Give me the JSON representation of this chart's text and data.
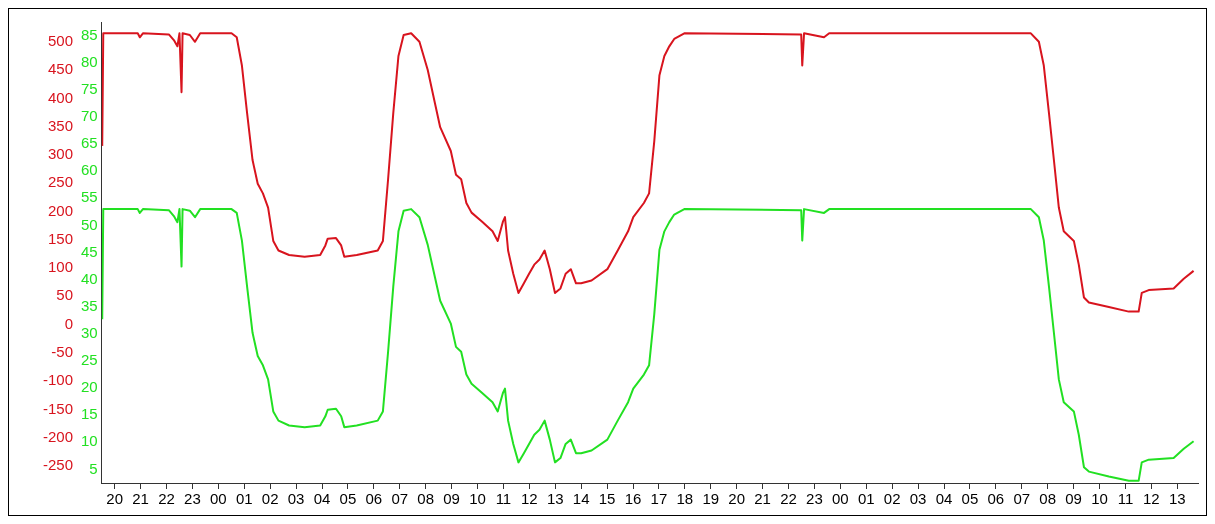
{
  "chart_data": {
    "type": "line",
    "x": [
      19.52,
      19.56,
      20.89,
      20.97,
      21.09,
      22.09,
      22.3,
      22.42,
      22.5,
      22.58,
      22.62,
      22.9,
      23.1,
      23.3,
      24.51,
      24.71,
      24.91,
      25.11,
      25.32,
      25.52,
      25.72,
      25.92,
      26.12,
      26.32,
      26.73,
      27.33,
      27.93,
      28.13,
      28.22,
      28.54,
      28.74,
      28.86,
      29.34,
      30.15,
      30.35,
      30.55,
      30.75,
      30.95,
      31.15,
      31.44,
      31.76,
      32.08,
      32.36,
      32.56,
      32.97,
      33.17,
      33.37,
      33.57,
      33.77,
      34.18,
      34.58,
      34.78,
      34.98,
      35.06,
      35.18,
      35.38,
      35.58,
      35.79,
      35.99,
      36.19,
      36.39,
      36.59,
      36.79,
      36.99,
      37.2,
      37.4,
      37.6,
      37.8,
      38.0,
      38.4,
      39.01,
      39.41,
      39.81,
      40.01,
      40.42,
      40.62,
      40.82,
      41.02,
      41.21,
      41.4,
      41.59,
      41.98,
      46.49,
      46.53,
      46.6,
      47.37,
      47.57,
      55.35,
      55.66,
      55.85,
      56.05,
      56.24,
      56.43,
      56.62,
      57.01,
      57.2,
      57.4,
      57.59,
      58.36,
      59.13,
      59.51,
      59.63,
      59.9,
      60.86,
      61.25,
      61.63
    ],
    "series": [
      {
        "color": "#d8141e",
        "axis": "y",
        "values": [
          316,
          515,
          515,
          508,
          515,
          513,
          502,
          492,
          515,
          411,
          515,
          512,
          500,
          515,
          515,
          508,
          458,
          374,
          291,
          249,
          232,
          207,
          148,
          131,
          123,
          120,
          123,
          140,
          152,
          153,
          140,
          120,
          123,
          131,
          148,
          257,
          374,
          475,
          512,
          515,
          500,
          450,
          391,
          349,
          307,
          265,
          257,
          215,
          198,
          182,
          165,
          148,
          182,
          190,
          131,
          90,
          56,
          73,
          90,
          106,
          115,
          131,
          98,
          56,
          64,
          90,
          98,
          73,
          73,
          78,
          98,
          131,
          165,
          190,
          215,
          232,
          324,
          441,
          475,
          492,
          505,
          515,
          513,
          458,
          515,
          508,
          515,
          515,
          500,
          458,
          374,
          291,
          207,
          165,
          148,
          106,
          48,
          39,
          31,
          23,
          23,
          56,
          61,
          64,
          81,
          95
        ]
      },
      {
        "color": "#22e022",
        "axis": "y2",
        "values": [
          32.7,
          53,
          53,
          52.3,
          53,
          52.8,
          51.6,
          50.6,
          53,
          42.4,
          53,
          52.7,
          51.5,
          53,
          53,
          52.3,
          47.2,
          38.7,
          30.2,
          25.9,
          24.2,
          21.6,
          15.7,
          14,
          13.1,
          12.8,
          13.1,
          14.8,
          16,
          16.2,
          14.8,
          12.8,
          13.1,
          14,
          15.7,
          26.7,
          38.7,
          48.9,
          52.7,
          53,
          51.5,
          46.4,
          40.4,
          36.1,
          31.9,
          27.6,
          26.7,
          22.5,
          20.8,
          19.1,
          17.4,
          15.7,
          19.1,
          19.9,
          14,
          9.7,
          6.3,
          8,
          9.7,
          11.4,
          12.3,
          14,
          10.5,
          6.3,
          7.1,
          9.7,
          10.5,
          8,
          8,
          8.5,
          10.5,
          14,
          17.4,
          19.9,
          22.5,
          24.2,
          33.6,
          45.5,
          48.9,
          50.6,
          52,
          53,
          52.8,
          47.2,
          53,
          52.3,
          53,
          53,
          51.5,
          47.2,
          38.7,
          30.2,
          21.6,
          17.4,
          15.7,
          11.4,
          5.4,
          4.6,
          3.7,
          2.9,
          2.9,
          6.3,
          6.8,
          7.1,
          8.8,
          10.2
        ]
      }
    ],
    "xlim": [
      19.5,
      61.8
    ],
    "xticks": [
      {
        "value": 20,
        "label": "20"
      },
      {
        "value": 21,
        "label": "21"
      },
      {
        "value": 22,
        "label": "22"
      },
      {
        "value": 23,
        "label": "23"
      },
      {
        "value": 24,
        "label": "00"
      },
      {
        "value": 25,
        "label": "01"
      },
      {
        "value": 26,
        "label": "02"
      },
      {
        "value": 27,
        "label": "03"
      },
      {
        "value": 28,
        "label": "04"
      },
      {
        "value": 29,
        "label": "05"
      },
      {
        "value": 30,
        "label": "06"
      },
      {
        "value": 31,
        "label": "07"
      },
      {
        "value": 32,
        "label": "08"
      },
      {
        "value": 33,
        "label": "09"
      },
      {
        "value": 34,
        "label": "10"
      },
      {
        "value": 35,
        "label": "11"
      },
      {
        "value": 36,
        "label": "12"
      },
      {
        "value": 37,
        "label": "13"
      },
      {
        "value": 38,
        "label": "14"
      },
      {
        "value": 39,
        "label": "15"
      },
      {
        "value": 40,
        "label": "16"
      },
      {
        "value": 41,
        "label": "17"
      },
      {
        "value": 42,
        "label": "18"
      },
      {
        "value": 43,
        "label": "19"
      },
      {
        "value": 44,
        "label": "20"
      },
      {
        "value": 45,
        "label": "21"
      },
      {
        "value": 46,
        "label": "22"
      },
      {
        "value": 47,
        "label": "23"
      },
      {
        "value": 48,
        "label": "00"
      },
      {
        "value": 49,
        "label": "01"
      },
      {
        "value": 50,
        "label": "02"
      },
      {
        "value": 51,
        "label": "03"
      },
      {
        "value": 52,
        "label": "04"
      },
      {
        "value": 53,
        "label": "05"
      },
      {
        "value": 54,
        "label": "06"
      },
      {
        "value": 55,
        "label": "07"
      },
      {
        "value": 56,
        "label": "08"
      },
      {
        "value": 57,
        "label": "09"
      },
      {
        "value": 58,
        "label": "10"
      },
      {
        "value": 59,
        "label": "11"
      },
      {
        "value": 60,
        "label": "12"
      },
      {
        "value": 61,
        "label": "13"
      }
    ],
    "ylim": [
      -280,
      535
    ],
    "yticks": [
      -250,
      -200,
      -150,
      -100,
      -50,
      0,
      50,
      100,
      150,
      200,
      250,
      300,
      350,
      400,
      450,
      500
    ],
    "y2lim": [
      2.5,
      87.5
    ],
    "y2ticks": [
      5,
      10,
      15,
      20,
      25,
      30,
      35,
      40,
      45,
      50,
      55,
      60,
      65,
      70,
      75,
      80,
      85
    ],
    "marker": "none",
    "line_style": "solid"
  }
}
